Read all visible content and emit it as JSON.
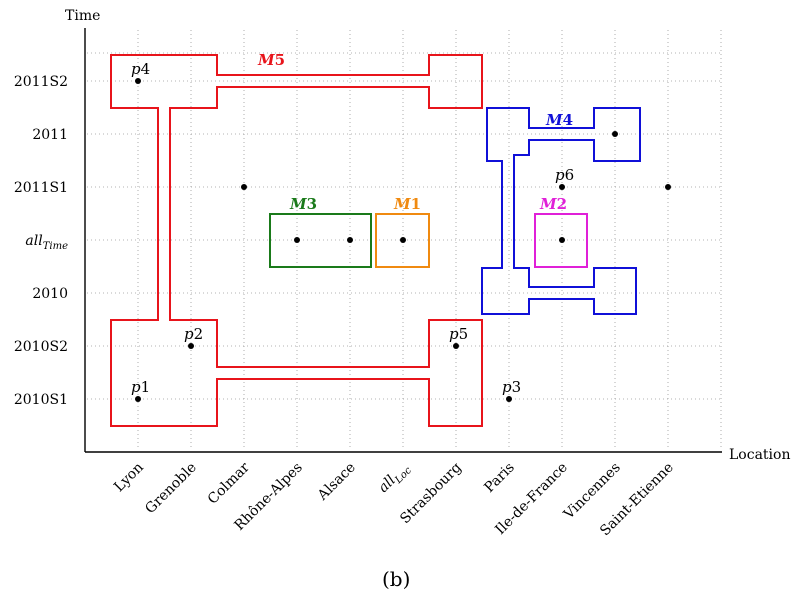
{
  "axes": {
    "x_title": "Location",
    "y_title": "Time"
  },
  "x_labels": [
    {
      "text": "Lyon",
      "small": false
    },
    {
      "text": "Grenoble",
      "small": true
    },
    {
      "text": "Colmar",
      "small": false
    },
    {
      "text": "Rhône-Alpes",
      "small": false
    },
    {
      "text": "Alsace",
      "small": false
    },
    {
      "text": "all",
      "sub": "Loc",
      "small": false
    },
    {
      "text": "Strasbourg",
      "small": false
    },
    {
      "text": "Paris",
      "small": false
    },
    {
      "text": "Ile-de-France",
      "small": false
    },
    {
      "text": "Vincennes",
      "small": false
    },
    {
      "text": "Saint-Etienne",
      "small": false
    }
  ],
  "y_labels": [
    {
      "text": "2011S2"
    },
    {
      "text": "2011"
    },
    {
      "text": "2011S1"
    },
    {
      "text": "all",
      "sub": "Time"
    },
    {
      "text": "2010"
    },
    {
      "text": "2010S2"
    },
    {
      "text": "2010S1"
    }
  ],
  "points": [
    {
      "label": "p4",
      "x": 0,
      "y": 0
    },
    {
      "label": "p6",
      "x": 8,
      "y": 2
    },
    {
      "label": "p2",
      "x": 1,
      "y": 5
    },
    {
      "label": "p5",
      "x": 6,
      "y": 5
    },
    {
      "label": "p1",
      "x": 0,
      "y": 6
    },
    {
      "label": "p3",
      "x": 7,
      "y": 6
    },
    {
      "label": "",
      "x": 2,
      "y": 2
    },
    {
      "label": "",
      "x": 10,
      "y": 2
    },
    {
      "label": "",
      "x": 9,
      "y": 1
    },
    {
      "label": "",
      "x": 3,
      "y": 3
    },
    {
      "label": "",
      "x": 4,
      "y": 3
    },
    {
      "label": "",
      "x": 5,
      "y": 3
    },
    {
      "label": "",
      "x": 8,
      "y": 3
    }
  ],
  "regions": [
    {
      "name": "M5",
      "color": "#e8141b"
    },
    {
      "name": "M4",
      "color": "#1010d8"
    },
    {
      "name": "M3",
      "color": "#1a7a1a"
    },
    {
      "name": "M1",
      "color": "#f08a10"
    },
    {
      "name": "M2",
      "color": "#e020d8"
    }
  ],
  "caption": "(b)"
}
